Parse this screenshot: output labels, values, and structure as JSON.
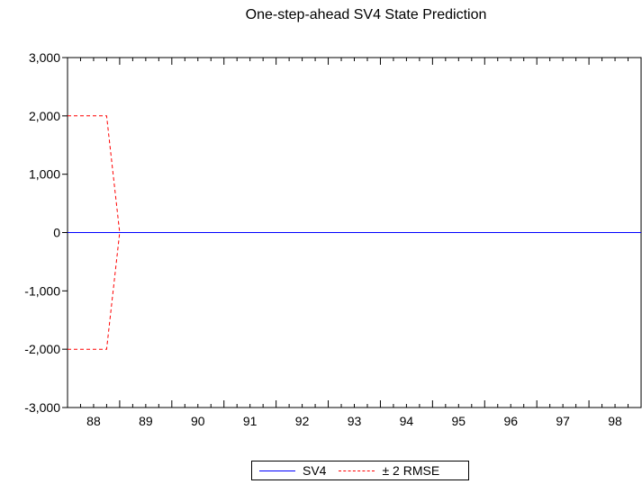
{
  "chart_data": {
    "type": "line",
    "title": "One-step-ahead SV4 State Prediction",
    "xlabel": "",
    "ylabel": "",
    "x_categories": [
      "88",
      "89",
      "90",
      "91",
      "92",
      "93",
      "94",
      "95",
      "96",
      "97",
      "98"
    ],
    "ylim": [
      -3000,
      3000
    ],
    "y_ticks": [
      3000,
      2000,
      1000,
      0,
      -1000,
      -2000,
      -3000
    ],
    "y_tick_labels": [
      "3,000",
      "2,000",
      "1,000",
      "0",
      "-1,000",
      "-2,000",
      "-3,000"
    ],
    "grid": false,
    "legend_position": "bottom",
    "series": [
      {
        "name": "SV4",
        "style": "solid",
        "color": "#0000ff",
        "x": [
          1988.0,
          1999.0
        ],
        "y": [
          0,
          0
        ]
      },
      {
        "name": "± 2 RMSE",
        "style": "dashed",
        "color": "#ff0000",
        "x": [
          1988.0,
          1988.75,
          1989.0,
          1999.0
        ],
        "y": [
          2000,
          2000,
          0,
          0
        ]
      },
      {
        "name": "± 2 RMSE",
        "style": "dashed",
        "color": "#ff0000",
        "x": [
          1988.0,
          1988.75,
          1989.0,
          1999.0
        ],
        "y": [
          -2000,
          -2000,
          0,
          0
        ]
      }
    ]
  },
  "legend": {
    "items": [
      {
        "label": "SV4"
      },
      {
        "label": "± 2 RMSE"
      }
    ]
  }
}
